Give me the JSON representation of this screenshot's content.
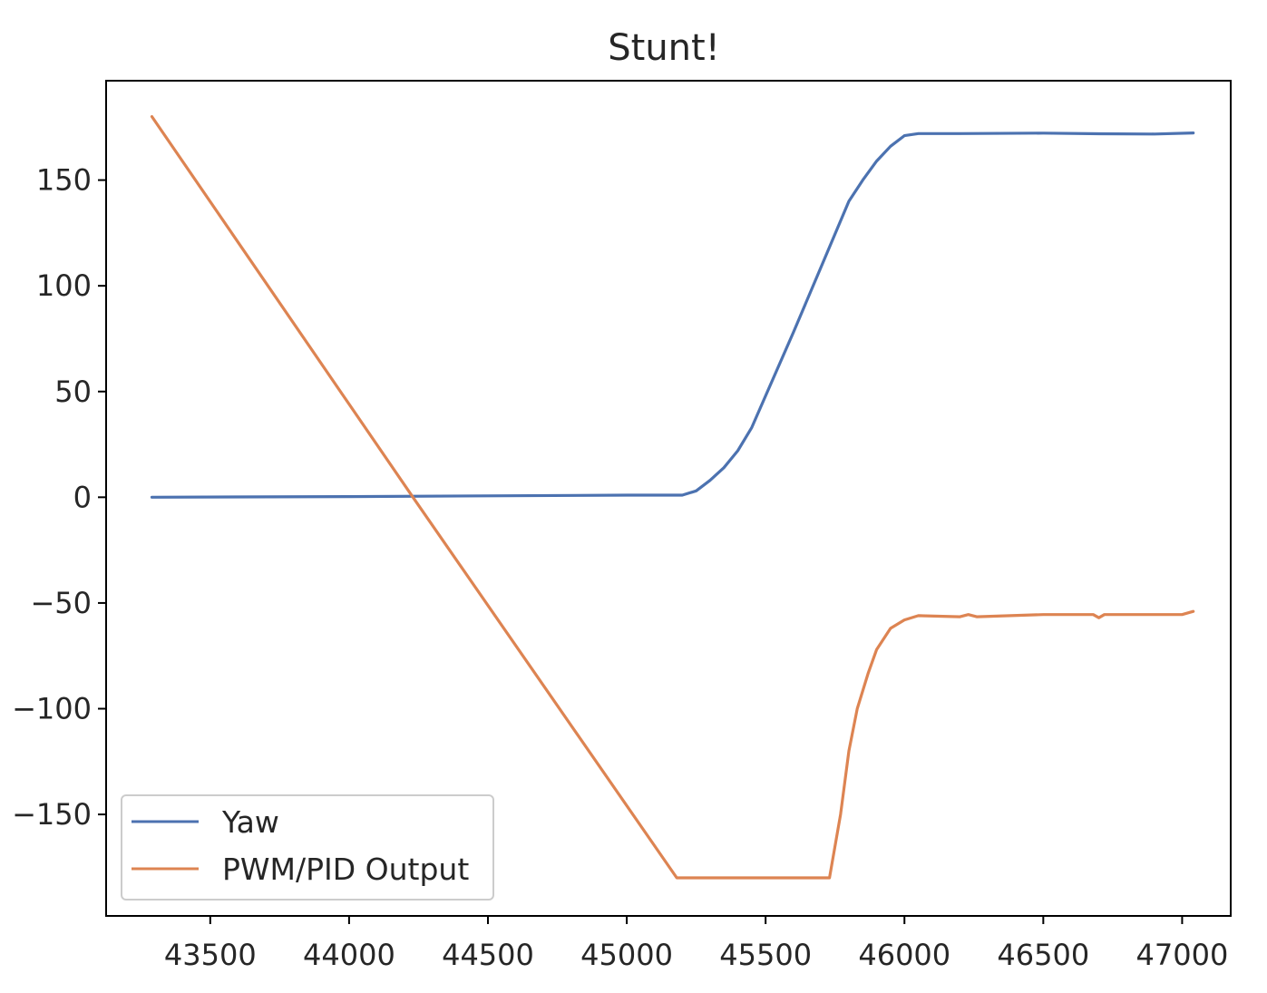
{
  "chart_data": {
    "type": "line",
    "title": "Stunt!",
    "xlabel": "",
    "ylabel": "",
    "xlim": [
      43125,
      47175
    ],
    "ylim": [
      -198,
      197
    ],
    "grid": false,
    "legend_position": "bottom-left",
    "x_ticks": [
      43500,
      44000,
      44500,
      45000,
      45500,
      46000,
      46500,
      47000
    ],
    "x_tick_labels": [
      "43500",
      "44000",
      "44500",
      "45000",
      "45500",
      "46000",
      "46500",
      "47000"
    ],
    "y_ticks": [
      150,
      100,
      50,
      0,
      -50,
      -100,
      -150
    ],
    "y_tick_labels": [
      "150",
      "100",
      "50",
      "0",
      "−50",
      "−100",
      "−150"
    ],
    "series": [
      {
        "name": "Yaw",
        "color": "#4c72b0",
        "x": [
          43290,
          44000,
          45000,
          45200,
          45250,
          45300,
          45350,
          45400,
          45450,
          45500,
          45600,
          45700,
          45800,
          45850,
          45900,
          45950,
          46000,
          46050,
          46200,
          46500,
          46700,
          46900,
          47040
        ],
        "y": [
          0,
          0.3,
          1,
          1,
          3,
          8,
          14,
          22,
          33,
          48,
          78,
          109,
          140,
          150,
          159,
          166,
          171,
          172,
          172,
          172.2,
          171.9,
          171.8,
          172.3
        ]
      },
      {
        "name": "PWM/PID Output",
        "color": "#dd8452",
        "x": [
          43290,
          44230,
          45180,
          45730,
          45770,
          45800,
          45830,
          45870,
          45900,
          45950,
          46000,
          46050,
          46200,
          46230,
          46260,
          46500,
          46680,
          46700,
          46720,
          47000,
          47040
        ],
        "y": [
          180,
          0,
          -180,
          -180,
          -150,
          -120,
          -100,
          -83,
          -72,
          -62,
          -58,
          -56,
          -56.5,
          -55.5,
          -56.5,
          -55.5,
          -55.5,
          -57,
          -55.5,
          -55.5,
          -54
        ]
      }
    ]
  }
}
